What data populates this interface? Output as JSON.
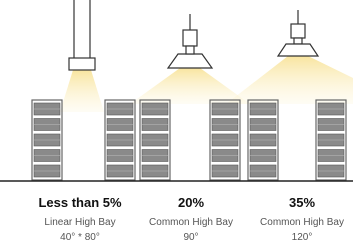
{
  "panels": [
    {
      "share": "Less than 5%",
      "fixture": "Linear High Bay",
      "angle": "40° * 80°"
    },
    {
      "share": "20%",
      "fixture": "Common High Bay",
      "angle": "90°"
    },
    {
      "share": "35%",
      "fixture": "Common High Bay",
      "angle": "120°"
    }
  ]
}
